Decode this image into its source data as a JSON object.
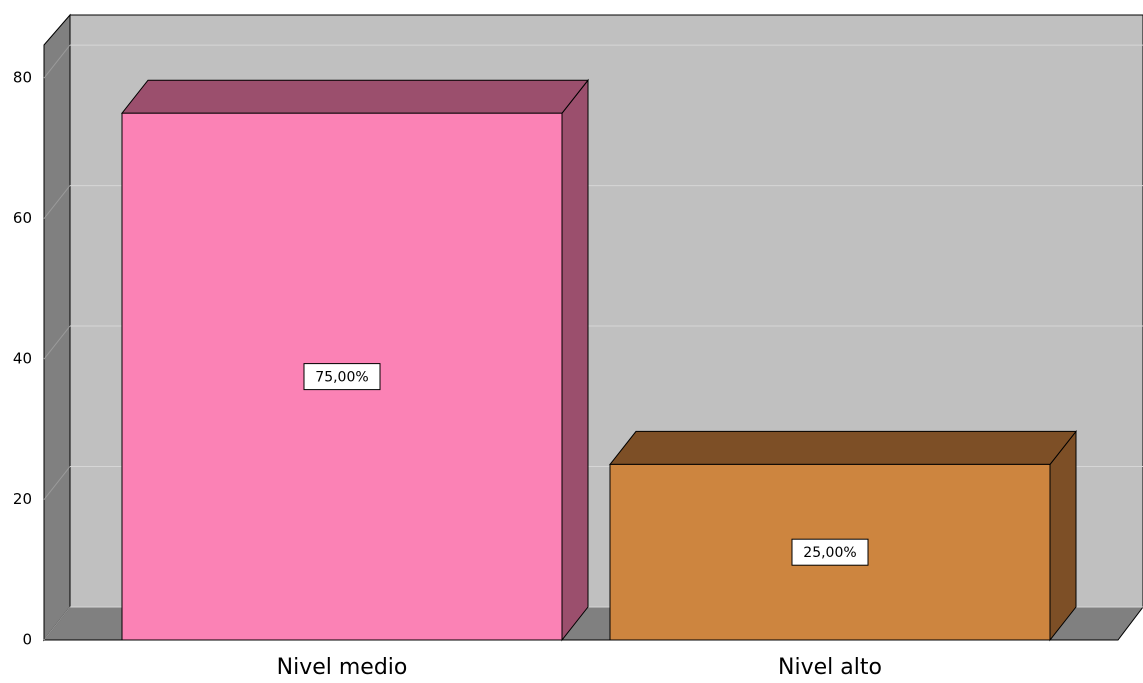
{
  "chart_data": {
    "type": "bar3d",
    "categories": [
      "Nivel medio",
      "Nivel alto"
    ],
    "values": [
      75,
      25
    ],
    "value_labels": [
      "75,00%",
      "25,00%"
    ],
    "colors": [
      "#fb82b5",
      "#cd853f"
    ],
    "side_colors": [
      "#9b4f6d",
      "#7d4f26"
    ],
    "ylim": [
      0,
      84
    ],
    "yticks": [
      0,
      20,
      40,
      60,
      80
    ],
    "grid": true
  }
}
